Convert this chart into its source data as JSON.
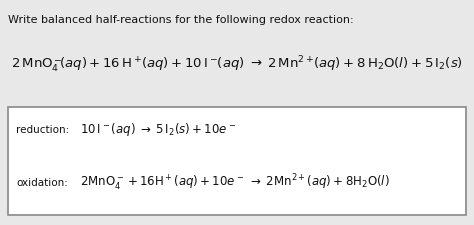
{
  "title": "Write balanced half-reactions for the following redox reaction:",
  "bg_color": "#e8e8e8",
  "box_facecolor": "#ffffff",
  "box_edgecolor": "#888888",
  "text_color": "#111111",
  "title_fontsize": 8.0,
  "main_eq_fontsize": 9.5,
  "label_fontsize": 7.5,
  "half_eq_fontsize": 8.5
}
